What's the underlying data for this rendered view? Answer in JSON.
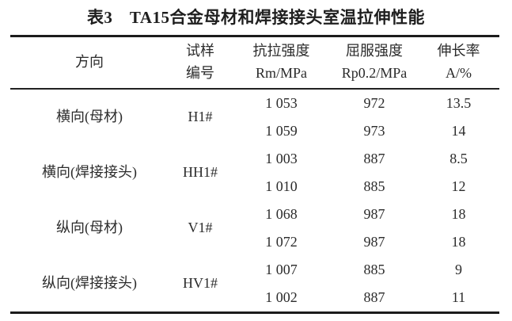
{
  "title": "表3　TA15合金母材和焊接接头室温拉伸性能",
  "table": {
    "columns": [
      {
        "line1": "方向",
        "line2": ""
      },
      {
        "line1": "试样",
        "line2": "编号"
      },
      {
        "line1": "抗拉强度",
        "line2": "Rm/MPa"
      },
      {
        "line1": "屈服强度",
        "line2": "Rp0.2/MPa"
      },
      {
        "line1": "伸长率",
        "line2": "A/%"
      }
    ],
    "groups": [
      {
        "direction": "横向(母材)",
        "sample_id": "H1#",
        "rows": [
          [
            "1 053",
            "972",
            "13.5"
          ],
          [
            "1 059",
            "973",
            "14"
          ]
        ]
      },
      {
        "direction": "横向(焊接接头)",
        "sample_id": "HH1#",
        "rows": [
          [
            "1 003",
            "887",
            "8.5"
          ],
          [
            "1 010",
            "885",
            "12"
          ]
        ]
      },
      {
        "direction": "纵向(母材)",
        "sample_id": "V1#",
        "rows": [
          [
            "1 068",
            "987",
            "18"
          ],
          [
            "1 072",
            "987",
            "18"
          ]
        ]
      },
      {
        "direction": "纵向(焊接接头)",
        "sample_id": "HV1#",
        "rows": [
          [
            "1 007",
            "885",
            "9"
          ],
          [
            "1 002",
            "887",
            "11"
          ]
        ]
      }
    ]
  }
}
